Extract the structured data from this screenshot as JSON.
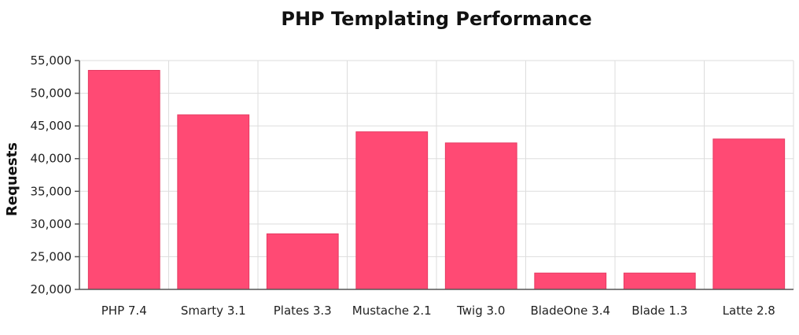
{
  "chart_data": {
    "type": "bar",
    "title": "PHP Templating Performance",
    "xlabel": "",
    "ylabel": "Requests",
    "categories": [
      "PHP 7.4",
      "Smarty 3.1",
      "Plates 3.3",
      "Mustache 2.1",
      "Twig 3.0",
      "BladeOne 3.4",
      "Blade 1.3",
      "Latte 2.8"
    ],
    "values": [
      53500,
      46700,
      28500,
      44100,
      42400,
      22500,
      22500,
      43000
    ],
    "ylim": [
      20000,
      55000
    ],
    "yticks": [
      20000,
      25000,
      30000,
      35000,
      40000,
      45000,
      50000,
      55000
    ],
    "ytick_labels": [
      "20,000",
      "25,000",
      "30,000",
      "35,000",
      "40,000",
      "45,000",
      "50,000",
      "55,000"
    ],
    "grid": true,
    "legend": "none",
    "bar_color": "#ff4a74"
  }
}
